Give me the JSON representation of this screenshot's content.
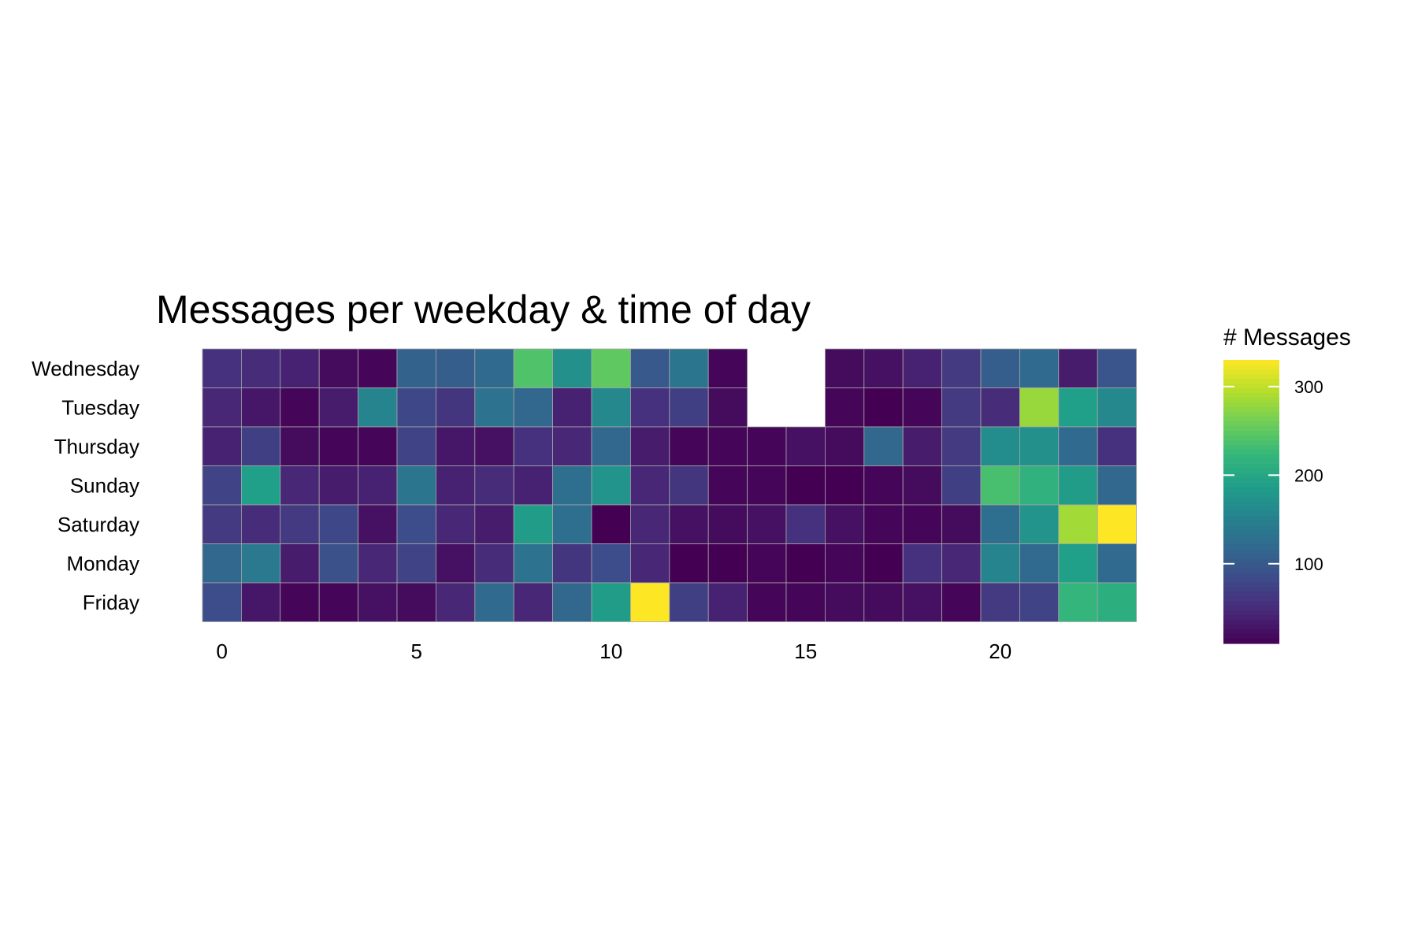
{
  "chart_data": {
    "type": "heatmap",
    "title": "Messages per weekday & time of day",
    "xlabel": "",
    "ylabel": "",
    "x": [
      0,
      1,
      2,
      3,
      4,
      5,
      6,
      7,
      8,
      9,
      10,
      11,
      12,
      13,
      14,
      15,
      16,
      17,
      18,
      19,
      20,
      21,
      22,
      23
    ],
    "x_ticks": [
      0,
      5,
      10,
      15,
      20
    ],
    "y_categories": [
      "Wednesday",
      "Tuesday",
      "Thursday",
      "Sunday",
      "Saturday",
      "Monday",
      "Friday"
    ],
    "values": [
      [
        55,
        50,
        40,
        20,
        15,
        110,
        105,
        120,
        240,
        170,
        250,
        100,
        135,
        15,
        null,
        null,
        20,
        25,
        40,
        65,
        105,
        120,
        35,
        95
      ],
      [
        45,
        30,
        15,
        35,
        155,
        80,
        60,
        130,
        115,
        40,
        160,
        55,
        70,
        20,
        null,
        null,
        15,
        10,
        15,
        65,
        50,
        280,
        190,
        160
      ],
      [
        40,
        70,
        20,
        15,
        15,
        75,
        30,
        25,
        55,
        45,
        115,
        35,
        15,
        15,
        15,
        25,
        20,
        115,
        35,
        65,
        165,
        170,
        120,
        55
      ],
      [
        75,
        190,
        45,
        35,
        40,
        135,
        40,
        50,
        40,
        125,
        175,
        45,
        60,
        15,
        15,
        10,
        10,
        15,
        20,
        70,
        235,
        215,
        185,
        115
      ],
      [
        65,
        50,
        65,
        80,
        25,
        85,
        45,
        35,
        185,
        125,
        10,
        45,
        25,
        20,
        25,
        55,
        25,
        15,
        15,
        20,
        125,
        175,
        285,
        330
      ],
      [
        115,
        140,
        35,
        90,
        45,
        75,
        25,
        50,
        130,
        60,
        85,
        45,
        10,
        10,
        15,
        10,
        15,
        10,
        55,
        45,
        155,
        120,
        190,
        120
      ],
      [
        85,
        30,
        15,
        15,
        25,
        20,
        45,
        120,
        45,
        115,
        185,
        330,
        70,
        40,
        15,
        15,
        20,
        20,
        25,
        15,
        65,
        75,
        220,
        210
      ]
    ],
    "colorbar": {
      "title": "# Messages",
      "ticks": [
        100,
        200,
        300
      ],
      "min": 10,
      "max": 330,
      "colormap": "viridis"
    },
    "legend_position": "right",
    "grid": false
  }
}
